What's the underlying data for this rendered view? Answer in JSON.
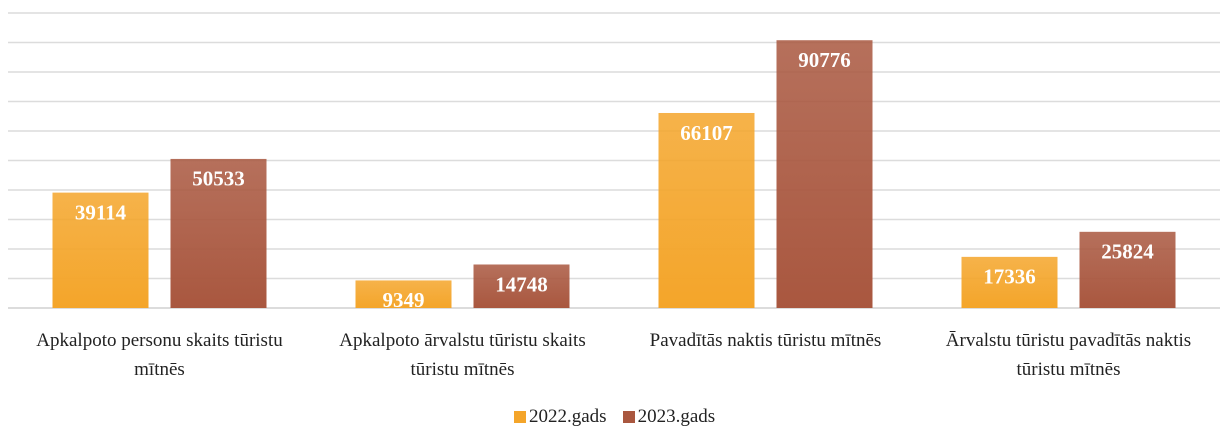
{
  "chart_data": {
    "type": "bar",
    "categories": [
      "Apkalpoto personu skaits tūristu mītnēs",
      "Apkalpoto ārvalstu tūristu skaits tūristu mītnēs",
      "Pavadītās naktis tūristu mītnēs",
      "Ārvalstu tūristu pavadītās naktis tūristu mītnēs"
    ],
    "series": [
      {
        "name": "2022.gads",
        "color": "#f4a52a",
        "values": [
          39114,
          9349,
          66107,
          17336
        ]
      },
      {
        "name": "2023.gads",
        "color": "#a9573f",
        "values": [
          50533,
          14748,
          90776,
          25824
        ]
      }
    ],
    "ylim": [
      0,
      100000
    ],
    "yticks": [
      0,
      10000,
      20000,
      30000,
      40000,
      50000,
      60000,
      70000,
      80000,
      90000,
      100000
    ],
    "grid": true,
    "legend": "bottom"
  }
}
